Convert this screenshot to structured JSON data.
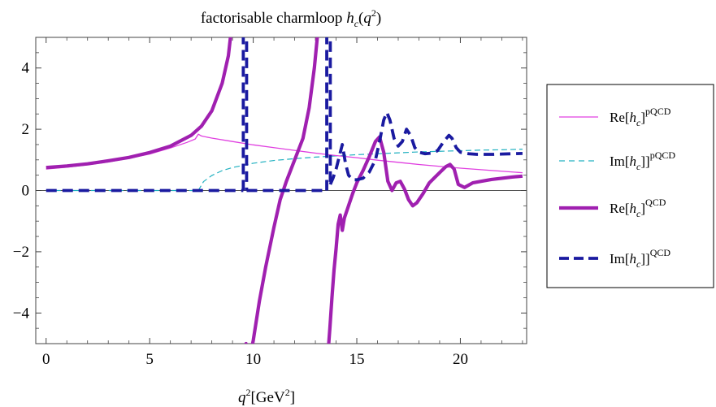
{
  "chart_data": {
    "type": "line",
    "title": {
      "prefix": "factorisable charmloop ",
      "func": "h",
      "sub": "c",
      "arg_open": "(",
      "arg_var": "q",
      "arg_exp": "2",
      "arg_close": ")"
    },
    "xlabel": {
      "var": "q",
      "exp": "2",
      "unit_open": "[GeV",
      "unit_exp": "2",
      "unit_close": "]"
    },
    "xlim": [
      -0.5,
      23.2
    ],
    "ylim": [
      -5,
      5
    ],
    "xticks": [
      0,
      5,
      10,
      15,
      20
    ],
    "yticks": [
      -4,
      -2,
      0,
      2,
      4
    ],
    "ytick_labels": [
      "−4",
      "−2",
      "0",
      "2",
      "4"
    ],
    "xtick_labels": [
      "0",
      "5",
      "10",
      "15",
      "20"
    ],
    "grid": false,
    "legend_position": "right",
    "series": [
      {
        "name": "Re[h_c]^pQCD",
        "legend": {
          "pre": "Re[",
          "var": "h",
          "sub": "c",
          "post": "]",
          "sup": "pQCD"
        },
        "color": "#e040e0",
        "style": "solid",
        "width": 1.3,
        "x": [
          0,
          1,
          2,
          3,
          4,
          5,
          6,
          6.8,
          7.2,
          7.35,
          7.5,
          8,
          9,
          10,
          11,
          12,
          13,
          14,
          15,
          16,
          17,
          18,
          19,
          20,
          21,
          22,
          23
        ],
        "y": [
          0.7,
          0.76,
          0.84,
          0.93,
          1.05,
          1.19,
          1.39,
          1.57,
          1.68,
          1.84,
          1.78,
          1.71,
          1.6,
          1.49,
          1.4,
          1.31,
          1.22,
          1.14,
          1.07,
          0.99,
          0.92,
          0.85,
          0.79,
          0.73,
          0.68,
          0.63,
          0.58
        ]
      },
      {
        "name": "Im[h_c]]^pQCD",
        "legend": {
          "pre": "Im[",
          "var": "h",
          "sub": "c",
          "post": "]]",
          "sup": "pQCD"
        },
        "color": "#20b0c0",
        "style": "dashed",
        "width": 1.2,
        "x": [
          0,
          3,
          6,
          7.35,
          7.6,
          8,
          8.5,
          9,
          10,
          11,
          12,
          13,
          14,
          15,
          16,
          17,
          18,
          19,
          20,
          21,
          22,
          23
        ],
        "y": [
          0,
          0,
          0,
          0,
          0.29,
          0.49,
          0.65,
          0.75,
          0.89,
          0.98,
          1.04,
          1.09,
          1.13,
          1.17,
          1.2,
          1.23,
          1.26,
          1.28,
          1.3,
          1.32,
          1.33,
          1.35
        ]
      },
      {
        "name": "Re[h_c]^QCD",
        "legend": {
          "pre": "Re[",
          "var": "h",
          "sub": "c",
          "post": "]",
          "sup": "QCD"
        },
        "color": "#a020b0",
        "style": "solid",
        "width": 4.2,
        "segments": [
          {
            "x": [
              0,
              1,
              2,
              3,
              4,
              5,
              6,
              7,
              7.5,
              8,
              8.5,
              8.8,
              9.0,
              9.1
            ],
            "y": [
              0.75,
              0.8,
              0.87,
              0.97,
              1.08,
              1.24,
              1.45,
              1.8,
              2.1,
              2.6,
              3.5,
              4.4,
              5.6,
              6.5
            ]
          },
          {
            "x": [
              9.6,
              9.65,
              9.72
            ],
            "y": [
              -5.4,
              -5.0,
              -5.4
            ]
          },
          {
            "x": [
              9.85,
              10.0,
              10.3,
              10.6,
              11.0,
              11.3,
              11.6,
              12.0,
              12.4,
              12.7,
              12.95,
              13.15
            ],
            "y": [
              -5.4,
              -4.9,
              -3.6,
              -2.5,
              -1.2,
              -0.3,
              0.3,
              1.0,
              1.7,
              2.7,
              4.0,
              5.4
            ]
          },
          {
            "x": [
              13.6,
              13.7,
              13.8,
              13.9,
              14.0,
              14.1,
              14.2,
              14.3,
              14.4,
              14.6,
              14.8,
              15.0,
              15.3,
              15.6,
              15.9,
              16.1,
              16.3,
              16.5,
              16.7,
              16.9,
              17.1,
              17.3,
              17.5,
              17.7,
              17.9,
              18.2,
              18.5,
              18.8,
              19.1,
              19.3,
              19.5,
              19.7,
              19.9,
              20.2,
              20.6,
              21.0,
              21.5,
              22.0,
              22.5,
              23.0
            ],
            "y": [
              -5.4,
              -4.5,
              -3.5,
              -2.6,
              -1.9,
              -1.1,
              -0.8,
              -1.3,
              -0.9,
              -0.5,
              -0.1,
              0.25,
              0.65,
              1.1,
              1.6,
              1.75,
              1.25,
              0.3,
              0.0,
              0.25,
              0.3,
              0.05,
              -0.3,
              -0.5,
              -0.4,
              -0.1,
              0.25,
              0.45,
              0.65,
              0.78,
              0.85,
              0.7,
              0.2,
              0.1,
              0.25,
              0.3,
              0.36,
              0.4,
              0.44,
              0.47
            ]
          }
        ]
      },
      {
        "name": "Im[h_c]]^QCD",
        "legend": {
          "pre": "Im[",
          "var": "h",
          "sub": "c",
          "post": "]]",
          "sup": "QCD"
        },
        "color": "#1a1aa0",
        "style": "dashed",
        "width": 3.8,
        "segments": [
          {
            "x": [
              0,
              2,
              4,
              6,
              8,
              9.4,
              9.52
            ],
            "y": [
              0,
              0,
              0,
              0,
              0,
              0,
              0
            ]
          },
          {
            "x": [
              9.52,
              9.52
            ],
            "y": [
              0,
              5.4
            ]
          },
          {
            "x": [
              9.68,
              9.68
            ],
            "y": [
              5.4,
              0
            ]
          },
          {
            "x": [
              9.68,
              11,
              12,
              13,
              13.5,
              13.55
            ],
            "y": [
              0,
              0,
              0,
              0,
              0,
              0
            ]
          },
          {
            "x": [
              13.55,
              13.55
            ],
            "y": [
              0,
              5.4
            ]
          },
          {
            "x": [
              13.72,
              13.72
            ],
            "y": [
              5.4,
              0.2
            ]
          },
          {
            "x": [
              13.72,
              13.85,
              14.0,
              14.15,
              14.3,
              14.45,
              14.6,
              14.8,
              15.0,
              15.3,
              15.6,
              15.9,
              16.1,
              16.3,
              16.45,
              16.6,
              16.8,
              17.0,
              17.2,
              17.4,
              17.6,
              17.8,
              18.0,
              18.3,
              18.6,
              18.9,
              19.2,
              19.45,
              19.6,
              19.8,
              20.0,
              20.4,
              20.8,
              21.2,
              21.6,
              22.0,
              22.5,
              23.0
            ],
            "y": [
              0.2,
              0.4,
              0.7,
              1.1,
              1.5,
              0.9,
              0.5,
              0.35,
              0.35,
              0.4,
              0.6,
              1.0,
              1.6,
              2.3,
              2.55,
              2.3,
              1.7,
              1.45,
              1.6,
              2.0,
              1.8,
              1.4,
              1.25,
              1.2,
              1.22,
              1.3,
              1.6,
              1.8,
              1.7,
              1.4,
              1.25,
              1.2,
              1.18,
              1.18,
              1.18,
              1.19,
              1.2,
              1.21
            ]
          }
        ]
      }
    ]
  }
}
